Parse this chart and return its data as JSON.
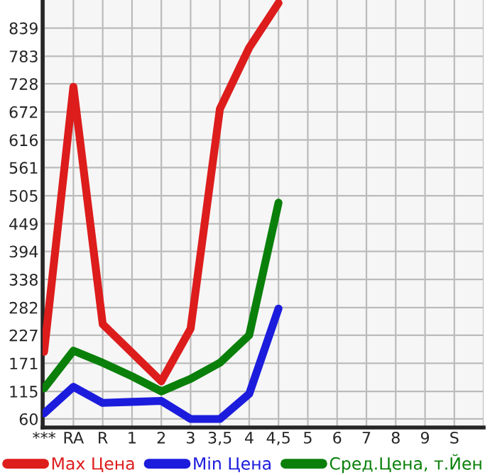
{
  "chart_data": {
    "type": "line",
    "categories": [
      "***",
      "RA",
      "R",
      "1",
      "2",
      "3",
      "3,5",
      "4",
      "4,5",
      "5",
      "6",
      "7",
      "8",
      "9",
      "S"
    ],
    "series": [
      {
        "name": "Max Цена",
        "color": "#dd1c1c",
        "values": [
          194,
          722,
          249,
          192,
          135,
          240,
          678,
          800,
          889,
          null,
          null,
          null,
          null,
          null,
          null
        ]
      },
      {
        "name": "Min Цена",
        "color": "#1c1cdd",
        "values": [
          71,
          124,
          92,
          94,
          96,
          60,
          60,
          110,
          280,
          null,
          null,
          null,
          null,
          null,
          null
        ]
      },
      {
        "name": "Сред.Цена, т.Йен",
        "color": "#0a800a",
        "values": [
          121,
          196,
          172,
          145,
          115,
          140,
          172,
          227,
          491,
          null,
          null,
          null,
          null,
          null,
          null
        ]
      }
    ],
    "ylim": [
      43,
      895
    ],
    "yticks": [
      60,
      115,
      171,
      227,
      282,
      338,
      394,
      449,
      505,
      561,
      616,
      672,
      728,
      783,
      839
    ],
    "grid": true,
    "legend": "bottom",
    "marker": "none",
    "line_style": "solid"
  }
}
